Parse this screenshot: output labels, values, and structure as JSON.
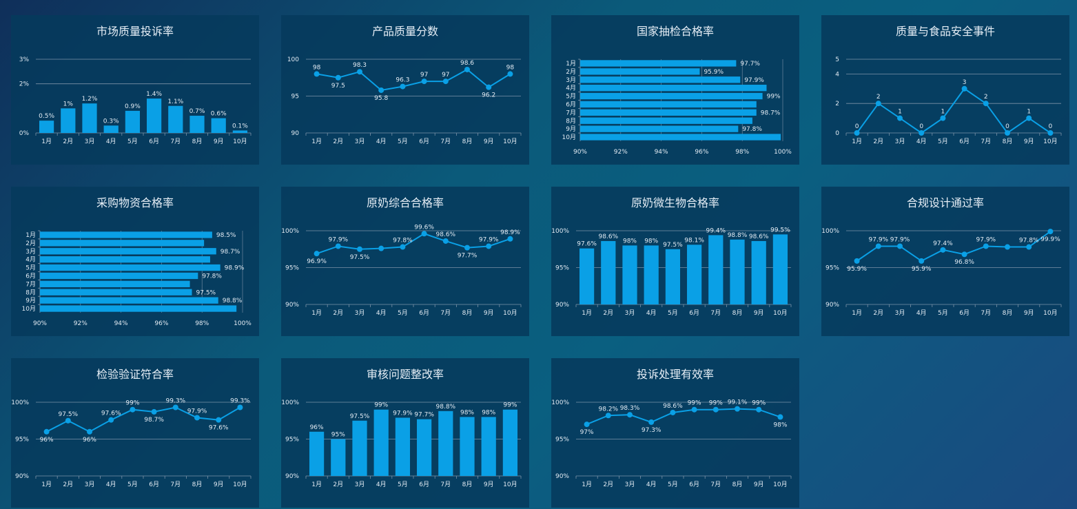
{
  "colors": {
    "series": "#0aa0e6",
    "grid": "#7d93a8",
    "text": "#e3ebf3"
  },
  "chart_data": [
    {
      "id": "c1",
      "title": "市场质量投诉率",
      "type": "bar",
      "categories": [
        "1月",
        "2月",
        "3月",
        "4月",
        "5月",
        "6月",
        "7月",
        "8月",
        "9月",
        "10月"
      ],
      "values": [
        0.5,
        1,
        1.2,
        0.3,
        0.9,
        1.4,
        1.1,
        0.7,
        0.6,
        0.1
      ],
      "labels": [
        "0.5%",
        "1%",
        "1.2%",
        "0.3%",
        "0.9%",
        "1.4%",
        "1.1%",
        "0.7%",
        "0.6%",
        "0.1%"
      ],
      "ylim": [
        0,
        3
      ],
      "yticks": [
        0,
        2,
        3
      ],
      "ytick_labels": [
        "0%",
        "2%",
        "3%"
      ]
    },
    {
      "id": "c2",
      "title": "产品质量分数",
      "type": "line",
      "categories": [
        "1月",
        "2月",
        "3月",
        "4月",
        "5月",
        "6月",
        "7月",
        "8月",
        "9月",
        "10月"
      ],
      "values": [
        98,
        97.5,
        98.3,
        95.8,
        96.3,
        97,
        97,
        98.6,
        96.2,
        98
      ],
      "labels": [
        "98",
        "97.5",
        "98.3",
        "95.8",
        "96.3",
        "97",
        "97",
        "98.6",
        "96.2",
        "98"
      ],
      "label_pos": [
        "above",
        "below",
        "above",
        "below",
        "above",
        "above",
        "above",
        "above",
        "below",
        "above"
      ],
      "ylim": [
        90,
        100
      ],
      "yticks": [
        90,
        95,
        100
      ],
      "ytick_labels": [
        "90",
        "95",
        "100"
      ]
    },
    {
      "id": "c3",
      "title": "国家抽检合格率",
      "type": "hbar",
      "categories": [
        "1月",
        "2月",
        "3月",
        "4月",
        "5月",
        "6月",
        "7月",
        "8月",
        "9月",
        "10月"
      ],
      "values": [
        97.7,
        95.9,
        97.9,
        99.2,
        99,
        98.7,
        98.7,
        98.5,
        97.8,
        99.9
      ],
      "labels": [
        "97.7%",
        "95.9%",
        "97.9%",
        "",
        "99%",
        "",
        "98.7%",
        "",
        "97.8%",
        ""
      ],
      "xlim": [
        90,
        100
      ],
      "xticks": [
        90,
        92,
        94,
        96,
        98,
        100
      ],
      "xtick_labels": [
        "90%",
        "92%",
        "94%",
        "96%",
        "98%",
        "100%"
      ]
    },
    {
      "id": "c4",
      "title": "质量与食品安全事件",
      "type": "line",
      "categories": [
        "1月",
        "2月",
        "3月",
        "4月",
        "5月",
        "6月",
        "7月",
        "8月",
        "9月",
        "10月"
      ],
      "values": [
        0,
        2,
        1,
        0,
        1,
        3,
        2,
        0,
        1,
        0
      ],
      "labels": [
        "0",
        "2",
        "1",
        "0",
        "1",
        "3",
        "2",
        "0",
        "1",
        "0"
      ],
      "label_pos": [
        "above",
        "above",
        "above",
        "above",
        "above",
        "above",
        "above",
        "above",
        "above",
        "above"
      ],
      "ylim": [
        0,
        5
      ],
      "yticks": [
        0,
        2,
        4,
        5
      ],
      "ytick_labels": [
        "0",
        "2",
        "4",
        "5"
      ]
    },
    {
      "id": "c5",
      "title": "采购物资合格率",
      "type": "hbar",
      "categories": [
        "1月",
        "2月",
        "3月",
        "4月",
        "5月",
        "6月",
        "7月",
        "8月",
        "9月",
        "10月"
      ],
      "values": [
        98.5,
        98.1,
        98.7,
        98.4,
        98.9,
        97.8,
        97.4,
        97.5,
        98.8,
        99.7
      ],
      "labels": [
        "98.5%",
        "",
        "98.7%",
        "",
        "98.9%",
        "97.8%",
        "",
        "97.5%",
        "98.8%",
        ""
      ],
      "xlim": [
        90,
        100
      ],
      "xticks": [
        90,
        92,
        94,
        96,
        98,
        100
      ],
      "xtick_labels": [
        "90%",
        "92%",
        "94%",
        "96%",
        "98%",
        "100%"
      ]
    },
    {
      "id": "c6",
      "title": "原奶综合合格率",
      "type": "line",
      "categories": [
        "1月",
        "2月",
        "3月",
        "4月",
        "5月",
        "6月",
        "7月",
        "8月",
        "9月",
        "10月"
      ],
      "values": [
        96.9,
        97.9,
        97.5,
        97.6,
        97.8,
        99.6,
        98.6,
        97.7,
        97.9,
        98.9
      ],
      "labels": [
        "96.9%",
        "97.9%",
        "97.5%",
        "",
        "97.8%",
        "99.6%",
        "98.6%",
        "97.7%",
        "97.9%",
        "98.9%"
      ],
      "label_pos": [
        "below",
        "above",
        "below",
        "above",
        "above",
        "above",
        "above",
        "below",
        "above",
        "above"
      ],
      "ylim": [
        90,
        100
      ],
      "yticks": [
        90,
        95,
        100
      ],
      "ytick_labels": [
        "90%",
        "95%",
        "100%"
      ]
    },
    {
      "id": "c7",
      "title": "原奶微生物合格率",
      "type": "bar",
      "categories": [
        "1月",
        "2月",
        "3月",
        "4月",
        "5月",
        "6月",
        "7月",
        "8月",
        "9月",
        "10月"
      ],
      "values": [
        97.6,
        98.6,
        98,
        98,
        97.5,
        98.1,
        99.4,
        98.8,
        98.6,
        99.5
      ],
      "labels": [
        "97.6%",
        "98.6%",
        "98%",
        "98%",
        "97.5%",
        "98.1%",
        "99.4%",
        "98.8%",
        "98.6%",
        "99.5%"
      ],
      "ylim": [
        90,
        100
      ],
      "yticks": [
        90,
        95,
        100
      ],
      "ytick_labels": [
        "90%",
        "95%",
        "100%"
      ]
    },
    {
      "id": "c8",
      "title": "合规设计通过率",
      "type": "line",
      "categories": [
        "1月",
        "2月",
        "3月",
        "4月",
        "5月",
        "6月",
        "7月",
        "8月",
        "9月",
        "10月"
      ],
      "values": [
        95.9,
        97.9,
        97.9,
        95.9,
        97.4,
        96.8,
        97.9,
        97.8,
        97.8,
        99.9
      ],
      "labels": [
        "95.9%",
        "97.9%",
        "97.9%",
        "95.9%",
        "97.4%",
        "96.8%",
        "97.9%",
        "",
        "97.8%",
        "99.9%"
      ],
      "label_pos": [
        "below",
        "above",
        "above",
        "below",
        "above",
        "below",
        "above",
        "above",
        "above",
        "below"
      ],
      "ylim": [
        90,
        100
      ],
      "yticks": [
        90,
        95,
        100
      ],
      "ytick_labels": [
        "90%",
        "95%",
        "100%"
      ]
    },
    {
      "id": "c9",
      "title": "检验验证符合率",
      "type": "line",
      "categories": [
        "1月",
        "2月",
        "3月",
        "4月",
        "5月",
        "6月",
        "7月",
        "8月",
        "9月",
        "10月"
      ],
      "values": [
        96,
        97.5,
        96,
        97.6,
        99,
        98.7,
        99.3,
        97.9,
        97.6,
        99.3
      ],
      "labels": [
        "96%",
        "97.5%",
        "96%",
        "97.6%",
        "99%",
        "98.7%",
        "99.3%",
        "97.9%",
        "97.6%",
        "99.3%"
      ],
      "label_pos": [
        "below",
        "above",
        "below",
        "above",
        "above",
        "below",
        "above",
        "above",
        "below",
        "above"
      ],
      "ylim": [
        90,
        100
      ],
      "yticks": [
        90,
        95,
        100
      ],
      "ytick_labels": [
        "90%",
        "95%",
        "100%"
      ]
    },
    {
      "id": "c10",
      "title": "审核问题整改率",
      "type": "bar",
      "categories": [
        "1月",
        "2月",
        "3月",
        "4月",
        "5月",
        "6月",
        "7月",
        "8月",
        "9月",
        "10月"
      ],
      "values": [
        96,
        95,
        97.5,
        99,
        97.9,
        97.7,
        98.8,
        98,
        98,
        99
      ],
      "labels": [
        "96%",
        "95%",
        "97.5%",
        "99%",
        "97.9%",
        "97.7%",
        "98.8%",
        "98%",
        "98%",
        "99%"
      ],
      "ylim": [
        90,
        100
      ],
      "yticks": [
        90,
        95,
        100
      ],
      "ytick_labels": [
        "90%",
        "95%",
        "100%"
      ]
    },
    {
      "id": "c11",
      "title": "投诉处理有效率",
      "type": "line",
      "categories": [
        "1月",
        "2月",
        "3月",
        "4月",
        "5月",
        "6月",
        "7月",
        "8月",
        "9月",
        "10月"
      ],
      "values": [
        97,
        98.2,
        98.3,
        97.3,
        98.6,
        99,
        99,
        99.1,
        99,
        98
      ],
      "labels": [
        "97%",
        "98.2%",
        "98.3%",
        "97.3%",
        "98.6%",
        "99%",
        "99%",
        "99.1%",
        "99%",
        "98%"
      ],
      "label_pos": [
        "below",
        "above",
        "above",
        "below",
        "above",
        "above",
        "above",
        "above",
        "above",
        "below"
      ],
      "ylim": [
        90,
        100
      ],
      "yticks": [
        90,
        95,
        100
      ],
      "ytick_labels": [
        "90%",
        "95%",
        "100%"
      ]
    }
  ]
}
